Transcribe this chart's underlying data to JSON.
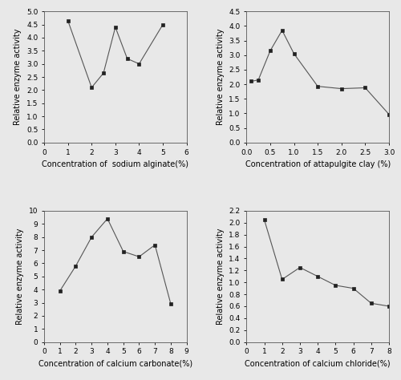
{
  "panel1": {
    "x": [
      1,
      2,
      2.5,
      3,
      3.5,
      4,
      5
    ],
    "y": [
      4.65,
      2.1,
      2.65,
      4.4,
      3.2,
      3.0,
      4.5
    ],
    "xlabel": "Concentration of  sodium alginate(%)",
    "ylabel": "Relative enzyme activity",
    "xlim": [
      0,
      6
    ],
    "ylim": [
      0.0,
      5.0
    ],
    "xticks": [
      0,
      1,
      2,
      3,
      4,
      5,
      6
    ],
    "yticks": [
      0.0,
      0.5,
      1.0,
      1.5,
      2.0,
      2.5,
      3.0,
      3.5,
      4.0,
      4.5,
      5.0
    ]
  },
  "panel2": {
    "x": [
      0.1,
      0.25,
      0.5,
      0.75,
      1.0,
      1.5,
      2.0,
      2.5,
      3.0
    ],
    "y": [
      2.1,
      2.15,
      3.15,
      3.85,
      3.05,
      1.93,
      1.85,
      1.88,
      0.97
    ],
    "xlabel": "Concentration of attapulgite clay (%)",
    "ylabel": "Relative enzyme activity",
    "xlim": [
      0.0,
      3.0
    ],
    "ylim": [
      0.0,
      4.5
    ],
    "xticks": [
      0.0,
      0.5,
      1.0,
      1.5,
      2.0,
      2.5,
      3.0
    ],
    "yticks": [
      0.0,
      0.5,
      1.0,
      1.5,
      2.0,
      2.5,
      3.0,
      3.5,
      4.0,
      4.5
    ]
  },
  "panel3": {
    "x": [
      1,
      2,
      3,
      4,
      5,
      6,
      7,
      8
    ],
    "y": [
      3.9,
      5.8,
      8.0,
      9.4,
      6.9,
      6.5,
      7.4,
      2.9
    ],
    "xlabel": "Concentration of calcium carbonate(%)",
    "ylabel": "Relative enzyme activity",
    "xlim": [
      0,
      9
    ],
    "ylim": [
      0,
      10
    ],
    "xticks": [
      0,
      1,
      2,
      3,
      4,
      5,
      6,
      7,
      8,
      9
    ],
    "yticks": [
      0,
      1,
      2,
      3,
      4,
      5,
      6,
      7,
      8,
      9,
      10
    ]
  },
  "panel4": {
    "x": [
      1,
      2,
      3,
      4,
      5,
      6,
      7,
      8
    ],
    "y": [
      2.05,
      1.05,
      1.25,
      1.1,
      0.95,
      0.9,
      0.65,
      0.6
    ],
    "xlabel": "Concentration of calcium chloride(%)",
    "ylabel": "Relative enzyme activity",
    "xlim": [
      0,
      8
    ],
    "ylim": [
      0.0,
      2.2
    ],
    "xticks": [
      0,
      1,
      2,
      3,
      4,
      5,
      6,
      7,
      8
    ],
    "yticks": [
      0.0,
      0.2,
      0.4,
      0.6,
      0.8,
      1.0,
      1.2,
      1.4,
      1.6,
      1.8,
      2.0,
      2.2
    ]
  },
  "line_color": "#555555",
  "marker": "s",
  "marker_color": "#222222",
  "marker_size": 3.5,
  "line_style": "-",
  "label_fontsize": 7,
  "tick_fontsize": 6.5,
  "figure_bg": "#e8e8e8"
}
